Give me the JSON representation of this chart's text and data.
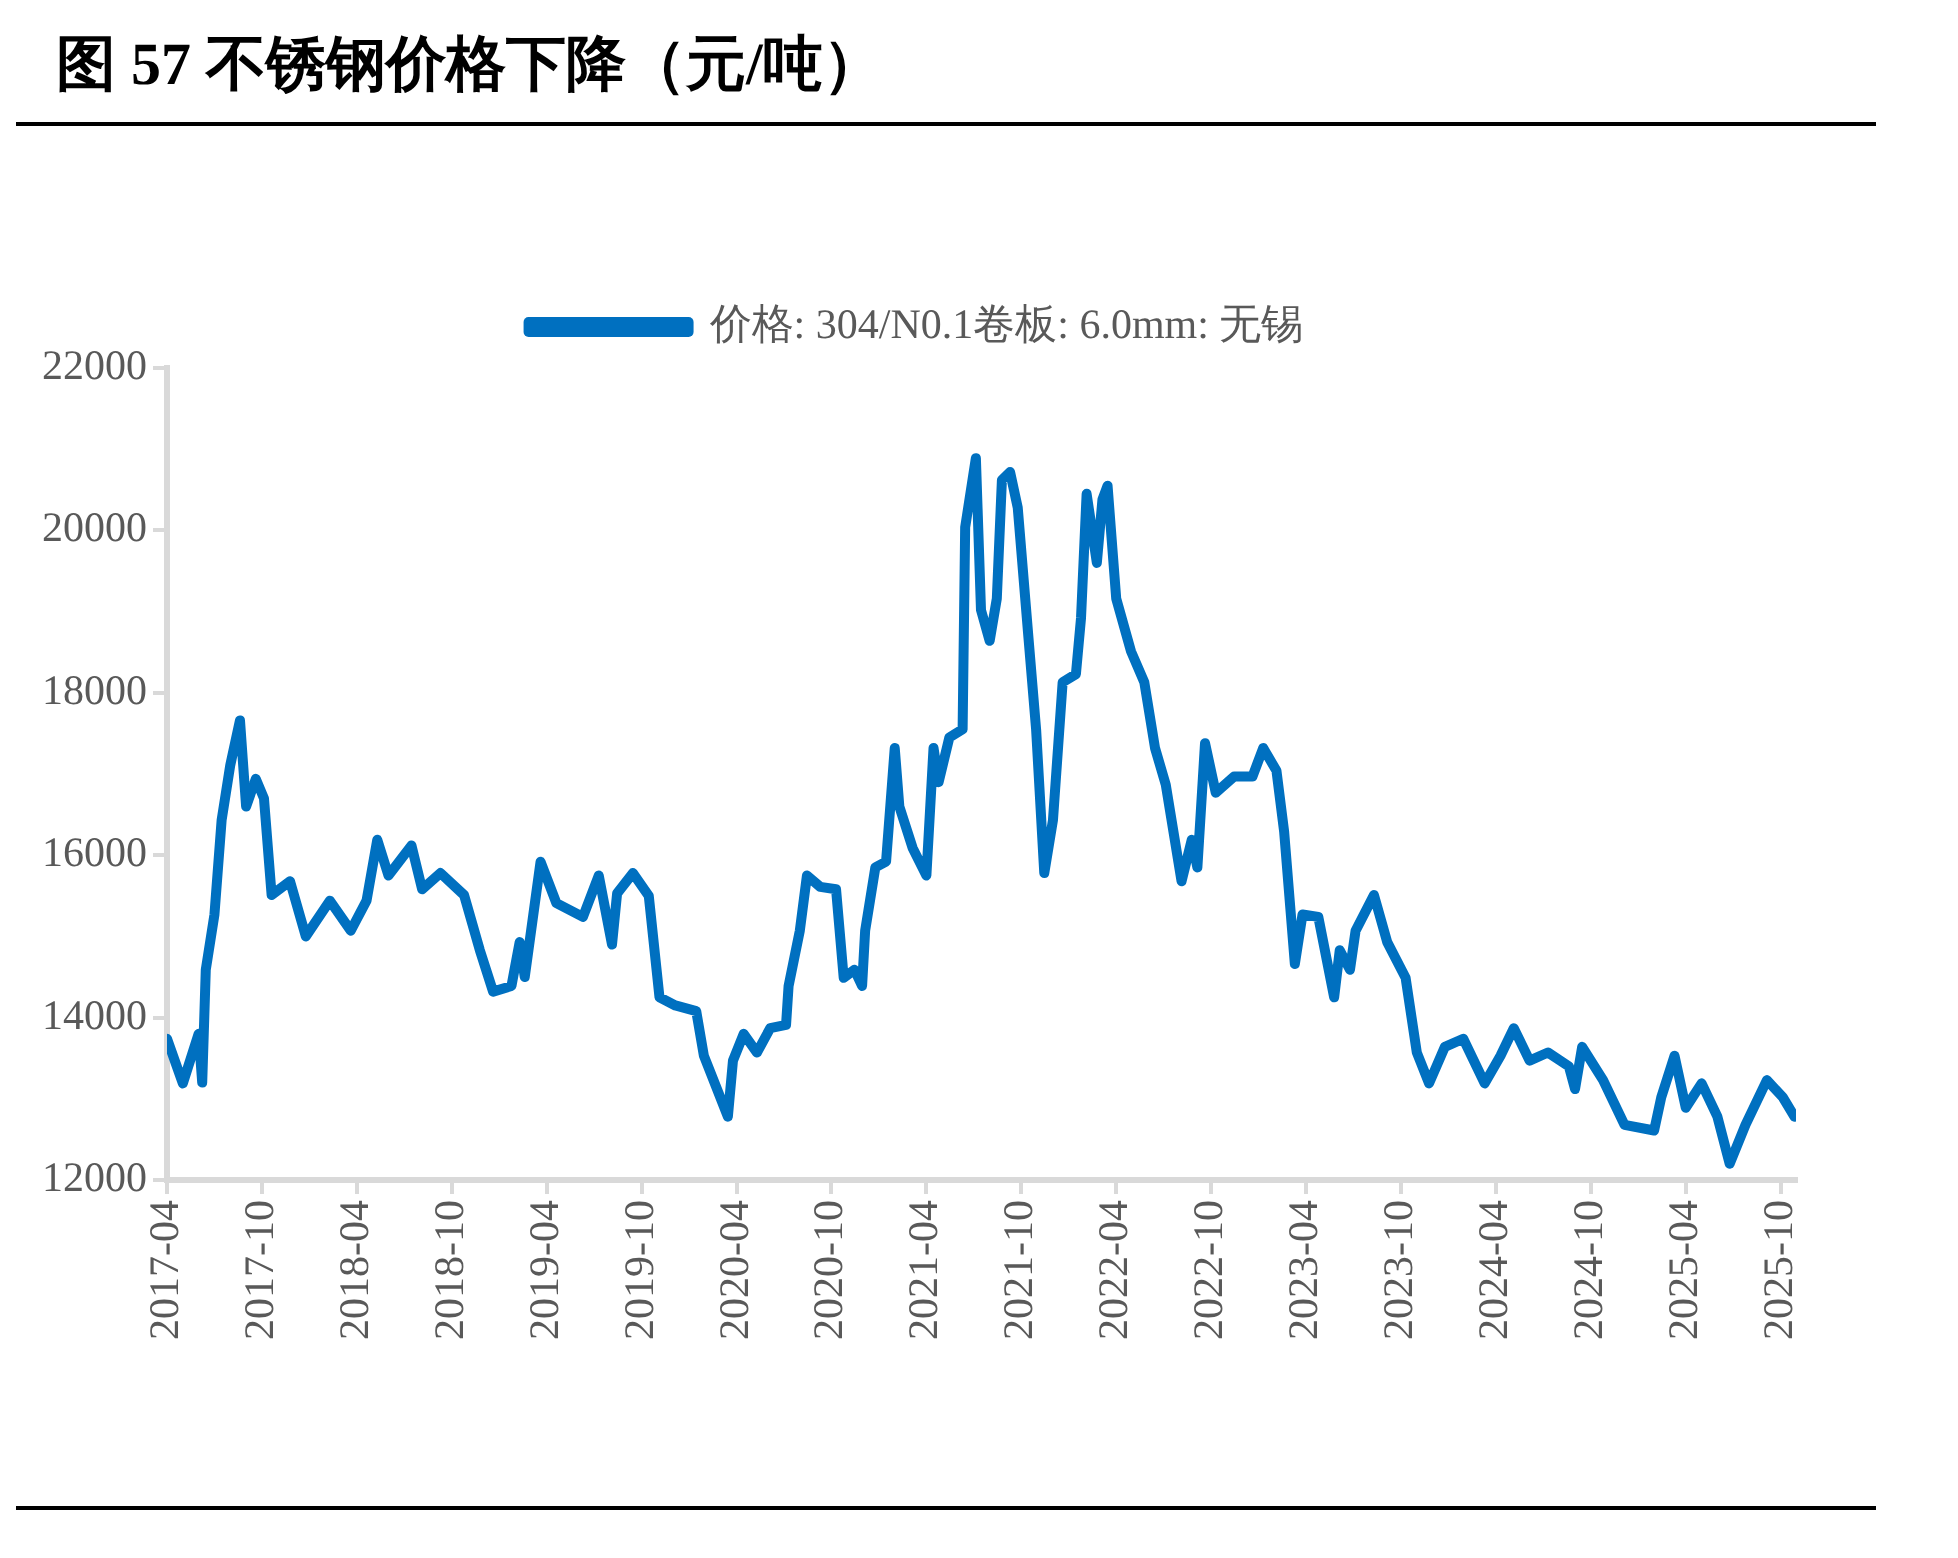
{
  "chart_data": {
    "type": "line",
    "title": "图 57  不锈钢价格下降（元/吨）",
    "legend": "top",
    "xlim": [
      "2017-04-01",
      "2025-10-31"
    ],
    "xticks": [
      "2017-04",
      "2017-10",
      "2018-04",
      "2018-10",
      "2019-04",
      "2019-10",
      "2020-04",
      "2020-10",
      "2021-04",
      "2021-10",
      "2022-04",
      "2022-10",
      "2023-04",
      "2023-10",
      "2024-04",
      "2024-10",
      "2025-04",
      "2025-10"
    ],
    "ylim": [
      12000,
      22000
    ],
    "yticks": [
      12000,
      14000,
      16000,
      18000,
      20000,
      22000
    ],
    "series": [
      {
        "name": "价格: 304/N0.1卷板: 6.0mm: 无锡",
        "color": "#0070c0",
        "x": [
          "2017-04-01",
          "2017-05-01",
          "2017-06-01",
          "2017-06-08",
          "2017-06-15",
          "2017-07-01",
          "2017-07-15",
          "2017-08-01",
          "2017-08-20",
          "2017-09-01",
          "2017-09-20",
          "2017-10-05",
          "2017-10-20",
          "2017-11-25",
          "2017-12-25",
          "2018-02-10",
          "2018-03-20",
          "2018-04-20",
          "2018-05-10",
          "2018-06-01",
          "2018-07-15",
          "2018-08-05",
          "2018-09-10",
          "2018-10-25",
          "2018-11-25",
          "2018-12-20",
          "2019-01-25",
          "2019-02-10",
          "2019-02-20",
          "2019-03-20",
          "2019-04-20",
          "2019-06-10",
          "2019-07-10",
          "2019-08-05",
          "2019-08-15",
          "2019-09-15",
          "2019-10-15",
          "2019-11-05",
          "2019-12-05",
          "2020-01-15",
          "2020-01-30",
          "2020-03-15",
          "2020-03-25",
          "2020-04-15",
          "2020-05-10",
          "2020-06-05",
          "2020-07-05",
          "2020-07-10",
          "2020-08-01",
          "2020-08-15",
          "2020-09-10",
          "2020-10-10",
          "2020-10-25",
          "2020-11-15",
          "2020-11-30",
          "2020-12-05",
          "2020-12-25",
          "2021-01-15",
          "2021-02-01",
          "2021-02-10",
          "2021-03-05",
          "2021-04-01",
          "2021-04-15",
          "2021-04-25",
          "2021-05-15",
          "2021-06-10",
          "2021-06-15",
          "2021-07-05",
          "2021-07-15",
          "2021-08-01",
          "2021-08-15",
          "2021-08-25",
          "2021-09-10",
          "2021-09-25",
          "2021-10-15",
          "2021-10-30",
          "2021-11-15",
          "2021-12-01",
          "2021-12-20",
          "2022-01-15",
          "2022-01-25",
          "2022-02-05",
          "2022-02-25",
          "2022-03-05",
          "2022-03-15",
          "2022-04-01",
          "2022-04-30",
          "2022-05-25",
          "2022-06-15",
          "2022-07-05",
          "2022-08-05",
          "2022-08-25",
          "2022-09-05",
          "2022-09-20",
          "2022-10-10",
          "2022-11-15",
          "2022-12-20",
          "2023-01-10",
          "2023-02-05",
          "2023-02-20",
          "2023-03-10",
          "2023-03-25",
          "2023-04-25",
          "2023-05-25",
          "2023-06-05",
          "2023-06-25",
          "2023-07-05",
          "2023-08-10",
          "2023-09-05",
          "2023-10-10",
          "2023-11-01",
          "2023-11-25",
          "2023-12-25",
          "2024-01-30",
          "2024-03-10",
          "2024-04-10",
          "2024-05-05",
          "2024-06-05",
          "2024-07-10",
          "2024-08-20",
          "2024-09-01",
          "2024-09-15",
          "2024-10-25",
          "2024-12-05",
          "2025-02-01",
          "2025-02-15",
          "2025-03-10",
          "2025-04-01",
          "2025-05-01",
          "2025-06-01",
          "2025-06-25",
          "2025-07-25",
          "2025-09-05",
          "2025-10-05",
          "2025-10-28"
        ],
        "values": [
          13740,
          13190,
          13800,
          13200,
          14590,
          15270,
          16430,
          17110,
          17660,
          16600,
          16940,
          16700,
          15510,
          15680,
          15000,
          15440,
          15070,
          15440,
          16190,
          15750,
          16120,
          15580,
          15780,
          15510,
          14830,
          14320,
          14390,
          14930,
          14500,
          15920,
          15410,
          15240,
          15750,
          14900,
          15530,
          15780,
          15500,
          14250,
          14150,
          14080,
          13530,
          12780,
          13470,
          13800,
          13570,
          13870,
          13910,
          14390,
          15070,
          15750,
          15610,
          15580,
          14490,
          14590,
          14390,
          15070,
          15850,
          15920,
          17320,
          16600,
          16090,
          15750,
          17320,
          16900,
          17450,
          17550,
          20040,
          20890,
          19020,
          18640,
          19160,
          20620,
          20720,
          20280,
          18680,
          17550,
          15780,
          16430,
          18130,
          18230,
          18920,
          20450,
          19600,
          20380,
          20550,
          19160,
          18510,
          18130,
          17320,
          16870,
          15680,
          16190,
          15850,
          17380,
          16770,
          16970,
          16970,
          17320,
          17040,
          16290,
          14660,
          15270,
          15240,
          14250,
          14830,
          14590,
          15070,
          15510,
          14930,
          14490,
          13570,
          13190,
          13640,
          13740,
          13190,
          13530,
          13870,
          13470,
          13570,
          13400,
          13120,
          13640,
          13230,
          12680,
          12610,
          13020,
          13530,
          12890,
          13190,
          12780,
          12200,
          12680,
          13230,
          13020,
          12780
        ]
      }
    ]
  }
}
